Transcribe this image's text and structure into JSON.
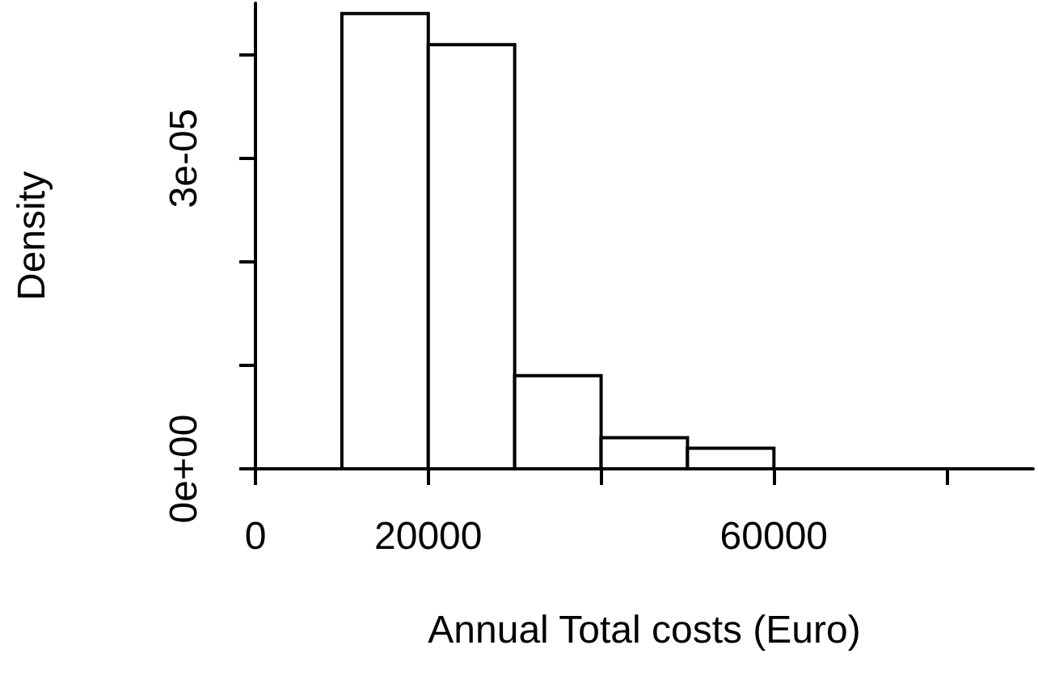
{
  "chart_data": {
    "type": "histogram",
    "xlabel": "Annual Total costs (Euro)",
    "ylabel": "Density",
    "bins": [
      0,
      10000,
      20000,
      30000,
      40000,
      50000,
      60000,
      70000,
      80000,
      90000
    ],
    "values": [
      0,
      4.4e-05,
      4.1e-05,
      9e-06,
      3e-06,
      2e-06,
      0,
      0,
      0
    ],
    "colors": [
      "#000000",
      "#ffffff",
      "#ffffff",
      "#ffffff",
      "#ffffff",
      "#ffffff",
      "#000000",
      "#000000",
      "#000000"
    ],
    "xlim": [
      0,
      90000
    ],
    "xticks": [
      0,
      20000,
      {
        "value": 40000,
        "label": null
      },
      60000,
      {
        "value": 80000,
        "label": null
      }
    ],
    "ylim": [
      0,
      4.5e-05
    ],
    "yticks": [
      {
        "value": 0,
        "label": "0e+00"
      },
      {
        "value": 1e-05,
        "label": null
      },
      {
        "value": 2e-05,
        "label": null
      },
      {
        "value": 3e-05,
        "label": "3e-05"
      },
      {
        "value": 4e-05,
        "label": null
      }
    ],
    "grid": false
  }
}
